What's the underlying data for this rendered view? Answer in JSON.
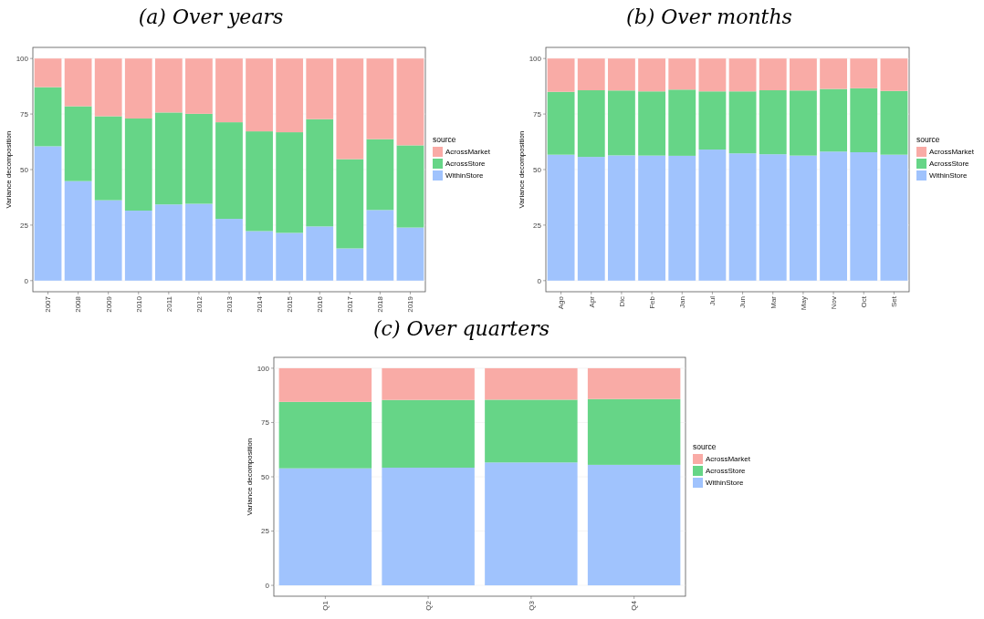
{
  "chart_data": [
    {
      "type": "bar",
      "title": "(a) Over years",
      "ylabel": "Variance decomposition",
      "legend_title": "source",
      "stacked": true,
      "grid": "y",
      "legend": "right",
      "ylim": [
        -5,
        105
      ],
      "yticks": [
        0,
        25,
        50,
        75,
        100
      ],
      "categories": [
        "2007",
        "2008",
        "2009",
        "2010",
        "2011",
        "2012",
        "2013",
        "2014",
        "2015",
        "2016",
        "2017",
        "2018",
        "2019"
      ],
      "series": [
        {
          "name": "WithinStore",
          "color": "#a0c3fd",
          "values": [
            60.5,
            44.8,
            36.2,
            31.5,
            34.3,
            34.6,
            27.8,
            22.3,
            21.5,
            24.4,
            14.5,
            31.8,
            23.9
          ]
        },
        {
          "name": "AcrossStore",
          "color": "#66d587",
          "values": [
            26.6,
            33.7,
            37.8,
            41.5,
            41.4,
            40.5,
            43.5,
            44.9,
            45.3,
            48.3,
            40.2,
            31.9,
            37.0
          ]
        },
        {
          "name": "AcrossMarket",
          "color": "#f9aba6",
          "values": [
            12.9,
            21.5,
            26.0,
            27.0,
            24.3,
            24.9,
            28.7,
            32.8,
            33.2,
            27.3,
            45.3,
            36.3,
            39.1
          ]
        }
      ]
    },
    {
      "type": "bar",
      "title": "(b) Over months",
      "ylabel": "Variance decomposition",
      "legend_title": "source",
      "stacked": true,
      "grid": "y",
      "legend": "right",
      "ylim": [
        -5,
        105
      ],
      "yticks": [
        0,
        25,
        50,
        75,
        100
      ],
      "categories": [
        "Ago",
        "Apr",
        "Dic",
        "Feb",
        "Jan",
        "Jul",
        "Jun",
        "Mar",
        "May",
        "Nov",
        "Oct",
        "Set"
      ],
      "series": [
        {
          "name": "WithinStore",
          "color": "#a0c3fd",
          "values": [
            56.7,
            55.7,
            56.4,
            56.3,
            56.2,
            59.0,
            57.3,
            56.9,
            56.3,
            58.1,
            57.8,
            56.7
          ]
        },
        {
          "name": "AcrossStore",
          "color": "#66d587",
          "values": [
            28.3,
            30.0,
            29.2,
            28.9,
            29.8,
            26.2,
            27.9,
            28.8,
            29.3,
            28.2,
            28.8,
            28.7
          ]
        },
        {
          "name": "AcrossMarket",
          "color": "#f9aba6",
          "values": [
            15.0,
            14.3,
            14.4,
            14.8,
            14.0,
            14.8,
            14.8,
            14.3,
            14.4,
            13.7,
            13.4,
            14.6
          ]
        }
      ]
    },
    {
      "type": "bar",
      "title": "(c) Over quarters",
      "ylabel": "Variance decomposition",
      "legend_title": "source",
      "stacked": true,
      "grid": "y",
      "legend": "right",
      "ylim": [
        -5,
        105
      ],
      "yticks": [
        0,
        25,
        50,
        75,
        100
      ],
      "categories": [
        "Q1",
        "Q2",
        "Q3",
        "Q4"
      ],
      "series": [
        {
          "name": "WithinStore",
          "color": "#a0c3fd",
          "values": [
            53.9,
            54.2,
            56.6,
            55.5
          ]
        },
        {
          "name": "AcrossStore",
          "color": "#66d587",
          "values": [
            30.6,
            31.2,
            28.9,
            30.3
          ]
        },
        {
          "name": "AcrossMarket",
          "color": "#f9aba6",
          "values": [
            15.5,
            14.6,
            14.5,
            14.2
          ]
        }
      ]
    }
  ]
}
